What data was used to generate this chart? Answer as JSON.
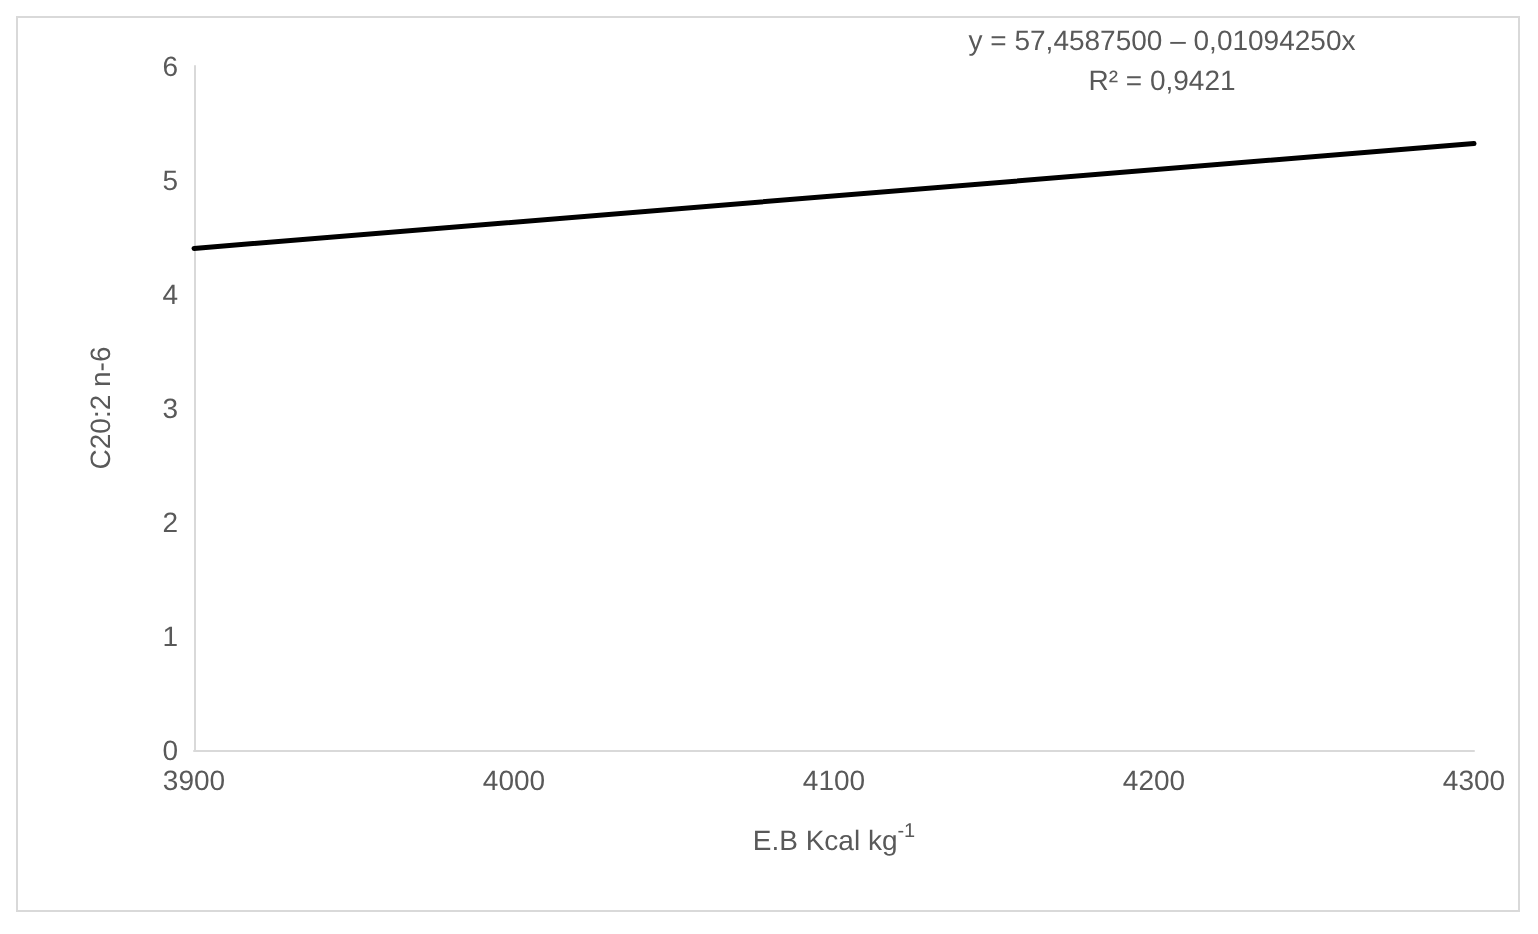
{
  "chart_data": {
    "type": "line",
    "xlabel": "E.B Kcal kg$^{-1}$",
    "ylabel": "C20:2 n-6",
    "x": [
      3900,
      4300
    ],
    "series": [
      {
        "color": "#000000",
        "values": [
          4.4,
          5.32
        ]
      }
    ],
    "xlim": [
      3900,
      4300
    ],
    "xticks": [
      3900,
      4000,
      4100,
      4200,
      4300
    ],
    "ylim": [
      0,
      6
    ],
    "yticks": [
      0,
      1,
      2,
      3,
      4,
      5,
      6
    ],
    "grid": false,
    "marker": "none",
    "line_style": "solid",
    "annotations": [
      "y = 57,4587500 – 0,01094250x",
      "R² = 0,9421"
    ]
  }
}
